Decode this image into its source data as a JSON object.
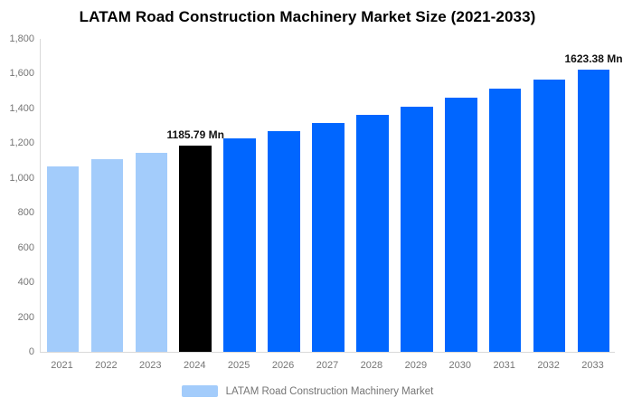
{
  "title": "LATAM Road Construction Machinery Market Size (2021-2033)",
  "legend": {
    "label": "LATAM Road Construction Machinery Market",
    "swatch_color": "#A3CCFB"
  },
  "style": {
    "historical_color": "#A3CCFB",
    "highlight_color": "#000000",
    "forecast_color": "#0066FF",
    "axis_color": "#D9D9D9",
    "tick_text_color": "#757575",
    "value_label_color": "#111111"
  },
  "chart_data": {
    "type": "bar",
    "title": "LATAM Road Construction Machinery Market Size (2021-2033)",
    "categories": [
      "2021",
      "2022",
      "2023",
      "2024",
      "2025",
      "2026",
      "2027",
      "2028",
      "2029",
      "2030",
      "2031",
      "2032",
      "2033"
    ],
    "values": [
      1068,
      1106,
      1145,
      1185.79,
      1228,
      1272,
      1317,
      1363,
      1412,
      1462,
      1514,
      1567,
      1623.38
    ],
    "bar_colors": [
      "#A3CCFB",
      "#A3CCFB",
      "#A3CCFB",
      "#000000",
      "#0066FF",
      "#0066FF",
      "#0066FF",
      "#0066FF",
      "#0066FF",
      "#0066FF",
      "#0066FF",
      "#0066FF",
      "#0066FF"
    ],
    "bar_labels": [
      "",
      "",
      "",
      "1185.79 Mn",
      "",
      "",
      "",
      "",
      "",
      "",
      "",
      "",
      "1623.38 Mn"
    ],
    "ylim": [
      0,
      1800
    ],
    "ytick_values": [
      0,
      200,
      400,
      600,
      800,
      1000,
      1200,
      1400,
      1600,
      1800
    ],
    "ytick_labels": [
      "0",
      "200",
      "400",
      "600",
      "800",
      "1,000",
      "1,200",
      "1,400",
      "1,600",
      "1,800"
    ],
    "grid": false,
    "legend_position": "bottom",
    "legend_entries": [
      "LATAM Road Construction Machinery Market"
    ]
  }
}
